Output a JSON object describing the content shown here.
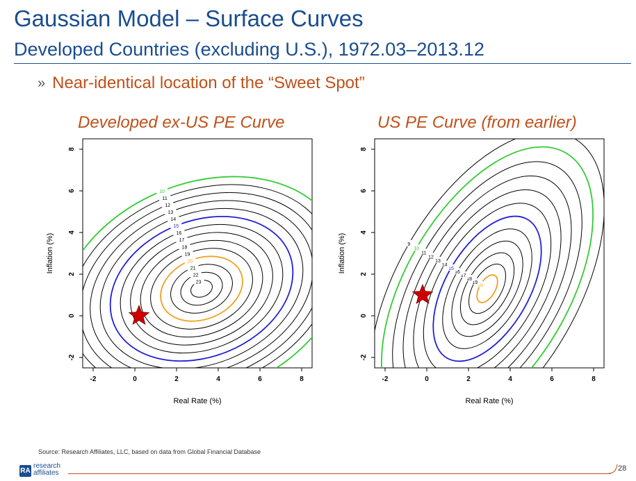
{
  "header": {
    "title": "Gaussian Model – Surface Curves",
    "subtitle": "Developed Countries (excluding U.S.), 1972.03–2013.12"
  },
  "bullet": {
    "marker": "»",
    "text": "Near-identical location of the “Sweet Spot”"
  },
  "colors": {
    "brand_blue": "#1a4d8f",
    "accent_orange": "#c0501a",
    "star_red": "#cc0000"
  },
  "chart_data": [
    {
      "type": "contour",
      "title": "Developed ex-US PE Curve",
      "xlabel": "Real Rate (%)",
      "ylabel": "Inflation (%)",
      "xlim": [
        -2.5,
        8.5
      ],
      "ylim": [
        -2.5,
        8.5
      ],
      "xticks": [
        "-2",
        "0",
        "2",
        "4",
        "6",
        "8"
      ],
      "yticks": [
        "-2",
        "0",
        "2",
        "4",
        "6",
        "8"
      ],
      "peak": {
        "real_rate": 3.2,
        "inflation": 1.3
      },
      "contours": [
        {
          "level": "10",
          "color": "#33cc33"
        },
        {
          "level": "11",
          "color": "#000000"
        },
        {
          "level": "12",
          "color": "#000000"
        },
        {
          "level": "13",
          "color": "#000000"
        },
        {
          "level": "14",
          "color": "#000000"
        },
        {
          "level": "15",
          "color": "#1f1fd6"
        },
        {
          "level": "16",
          "color": "#000000"
        },
        {
          "level": "17",
          "color": "#000000"
        },
        {
          "level": "18",
          "color": "#000000"
        },
        {
          "level": "19",
          "color": "#000000"
        },
        {
          "level": "20",
          "color": "#f0a020"
        },
        {
          "level": "21",
          "color": "#000000"
        },
        {
          "level": "22",
          "color": "#000000"
        },
        {
          "level": "23",
          "color": "#000000"
        }
      ],
      "sweet_spot": {
        "real_rate": 0.2,
        "inflation": 0.0
      }
    },
    {
      "type": "contour",
      "title": "US PE Curve (from earlier)",
      "xlabel": "Real Rate (%)",
      "ylabel": "Inflation (%)",
      "xlim": [
        -2.5,
        8.5
      ],
      "ylim": [
        -2.5,
        8.5
      ],
      "xticks": [
        "-2",
        "0",
        "2",
        "4",
        "6",
        "8"
      ],
      "yticks": [
        "-2",
        "0",
        "2",
        "4",
        "6",
        "8"
      ],
      "peak": {
        "real_rate": 2.9,
        "inflation": 1.3
      },
      "contours": [
        {
          "level": "9",
          "color": "#000000"
        },
        {
          "level": "10",
          "color": "#33cc33"
        },
        {
          "level": "11",
          "color": "#000000"
        },
        {
          "level": "12",
          "color": "#000000"
        },
        {
          "level": "13",
          "color": "#000000"
        },
        {
          "level": "14",
          "color": "#000000"
        },
        {
          "level": "15",
          "color": "#1f1fd6"
        },
        {
          "level": "16",
          "color": "#000000"
        },
        {
          "level": "17",
          "color": "#000000"
        },
        {
          "level": "18",
          "color": "#000000"
        },
        {
          "level": "19",
          "color": "#000000"
        },
        {
          "level": "20",
          "color": "#f0a020"
        }
      ],
      "sweet_spot": {
        "real_rate": -0.2,
        "inflation": 1.0
      }
    }
  ],
  "footer": {
    "source": "Source: Research Affiliates, LLC, based on data from Global Financial Database",
    "logo_line1": "research",
    "logo_line2": "affiliates",
    "logo_mark": "RA",
    "page_number": "28"
  }
}
